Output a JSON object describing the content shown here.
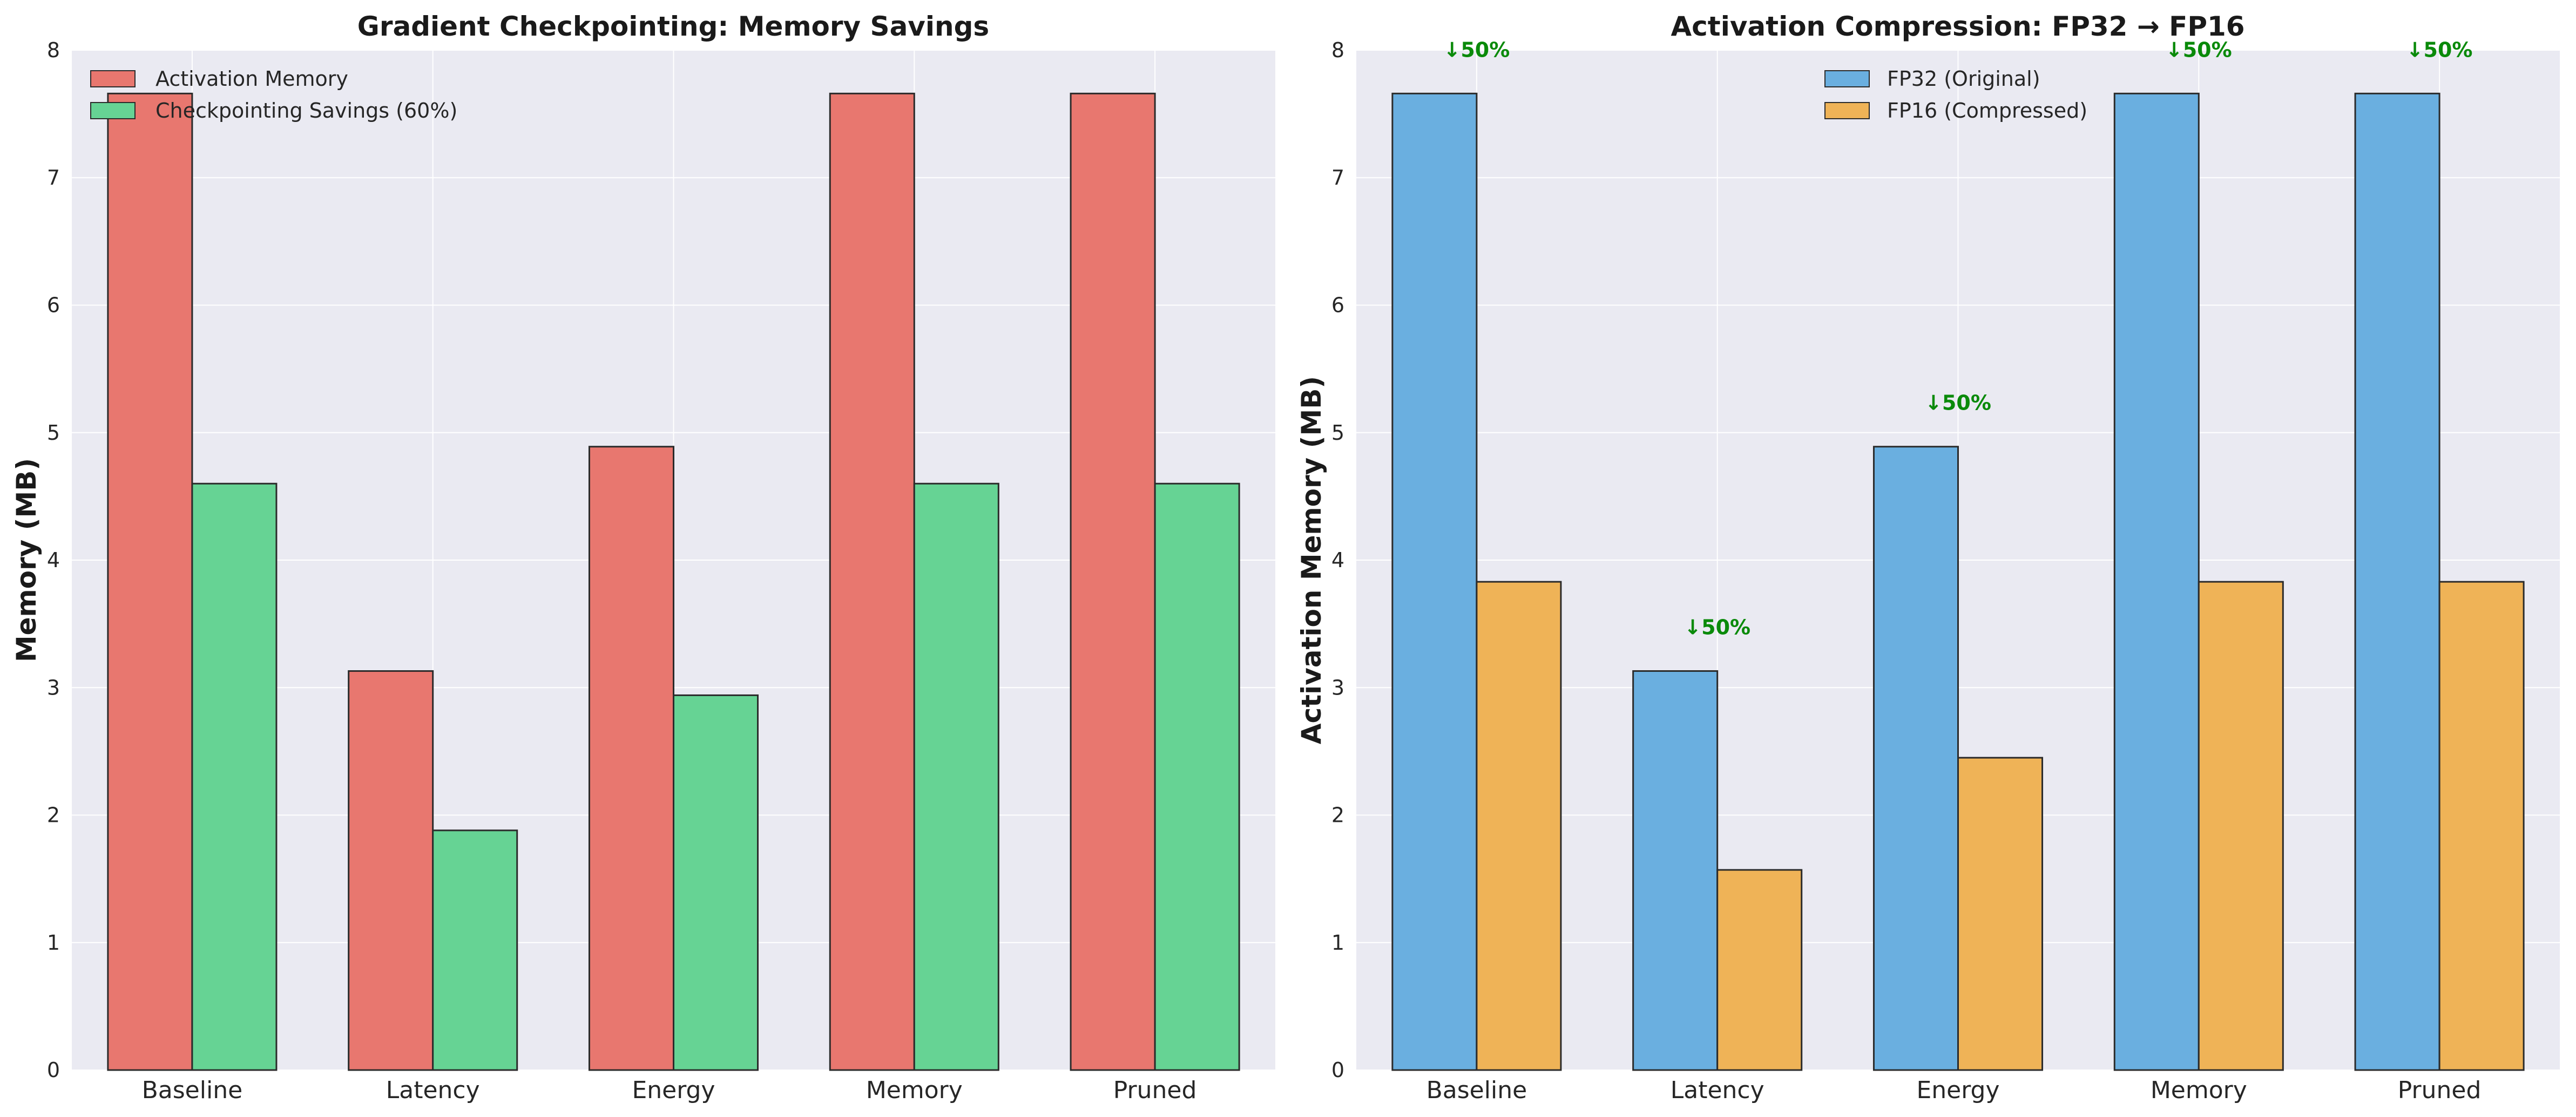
{
  "colors": {
    "panel_bg": "#eaeaf2",
    "grid": "#ffffff",
    "bar_edge": "#2b2b2b",
    "activation": "#e8776f",
    "checkpoint": "#66d394",
    "fp32": "#6aafe0",
    "fp16": "#efb357",
    "annotation": "#0a8a0a"
  },
  "chart_data": [
    {
      "type": "bar",
      "title": "Gradient Checkpointing: Memory Savings",
      "xlabel": "",
      "ylabel": "Memory (MB)",
      "categories": [
        "Baseline",
        "Latency",
        "Energy",
        "Memory",
        "Pruned"
      ],
      "series": [
        {
          "name": "Activation Memory",
          "color": "#e8776f",
          "values": [
            7.66,
            3.13,
            4.89,
            7.66,
            7.66
          ]
        },
        {
          "name": "Checkpointing Savings (60%)",
          "color": "#66d394",
          "values": [
            4.6,
            1.88,
            2.94,
            4.6,
            4.6
          ]
        }
      ],
      "ylim": [
        0,
        8
      ],
      "yticks": [
        "0",
        "1",
        "2",
        "3",
        "4",
        "5",
        "6",
        "7",
        "8"
      ],
      "grid": true,
      "legend_position": "top-left",
      "annotations": []
    },
    {
      "type": "bar",
      "title": "Activation Compression: FP32 → FP16",
      "xlabel": "",
      "ylabel": "Activation Memory (MB)",
      "categories": [
        "Baseline",
        "Latency",
        "Energy",
        "Memory",
        "Pruned"
      ],
      "series": [
        {
          "name": "FP32 (Original)",
          "color": "#6aafe0",
          "values": [
            7.66,
            3.13,
            4.89,
            7.66,
            7.66
          ]
        },
        {
          "name": "FP16 (Compressed)",
          "color": "#efb357",
          "values": [
            3.83,
            1.57,
            2.45,
            3.83,
            3.83
          ]
        }
      ],
      "ylim": [
        0,
        8
      ],
      "yticks": [
        "0",
        "1",
        "2",
        "3",
        "4",
        "5",
        "6",
        "7",
        "8"
      ],
      "grid": true,
      "legend_position": "top-center",
      "annotations": [
        "↓50%",
        "↓50%",
        "↓50%",
        "↓50%",
        "↓50%"
      ]
    }
  ]
}
